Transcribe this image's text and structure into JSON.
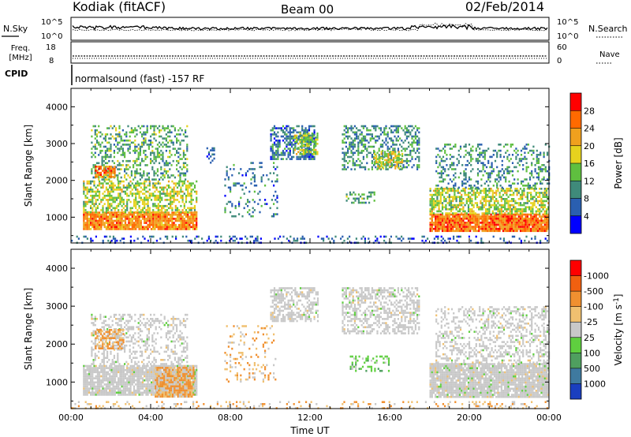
{
  "header": {
    "station": "Kodiak (fitACF)",
    "beam": "Beam 00",
    "date": "02/Feb/2014"
  },
  "summary": {
    "nsky_label": "N.Sky",
    "nsky_ticks": [
      "10^5",
      "10^0"
    ],
    "nsearch_label": "N.Search",
    "freq_label_line1": "Freq.",
    "freq_label_line2": "[MHz]",
    "freq_ticks": [
      "18",
      "8"
    ],
    "nave_label": "Nave",
    "nave_ticks": [
      "60",
      "0"
    ],
    "cpid_label": "CPID",
    "cpid_text": "normalsound (fast) -157 RF"
  },
  "chart_data": [
    {
      "type": "heatmap",
      "parameter": "Power",
      "xlabel": "",
      "ylabel": "Slant Range [km]",
      "ylim": [
        300,
        4500
      ],
      "yticks": [
        1000,
        2000,
        3000,
        4000
      ],
      "xlim": [
        0,
        24
      ],
      "colorbar": {
        "label": "Power [dB]",
        "ticks": [
          "4",
          "8",
          "12",
          "16",
          "20",
          "24",
          "28"
        ],
        "colors": [
          "#0000ff",
          "#2a5fb0",
          "#3f8a7a",
          "#5fbf3f",
          "#e6d21e",
          "#f0a01e",
          "#ff6a00",
          "#ff0000"
        ]
      },
      "scatter_regions": [
        {
          "t": [
            0.6,
            6.3
          ],
          "r": [
            700,
            1150
          ],
          "level": 26,
          "density": 0.9
        },
        {
          "t": [
            0.6,
            6.3
          ],
          "r": [
            1150,
            2000
          ],
          "level": 18,
          "density": 0.55
        },
        {
          "t": [
            1.0,
            5.8
          ],
          "r": [
            2000,
            3500
          ],
          "level": 14,
          "density": 0.35
        },
        {
          "t": [
            1.2,
            2.2
          ],
          "r": [
            2100,
            2400
          ],
          "level": 26,
          "density": 0.8
        },
        {
          "t": [
            6.8,
            7.2
          ],
          "r": [
            2500,
            2900
          ],
          "level": 8,
          "density": 0.4
        },
        {
          "t": [
            7.7,
            10.4
          ],
          "r": [
            1000,
            2500
          ],
          "level": 10,
          "density": 0.15
        },
        {
          "t": [
            10.0,
            12.2
          ],
          "r": [
            2600,
            3500
          ],
          "level": 10,
          "density": 0.55
        },
        {
          "t": [
            11.2,
            12.4
          ],
          "r": [
            2700,
            3300
          ],
          "level": 18,
          "density": 0.6
        },
        {
          "t": [
            13.6,
            17.5
          ],
          "r": [
            2300,
            3500
          ],
          "level": 12,
          "density": 0.45
        },
        {
          "t": [
            15.2,
            16.6
          ],
          "r": [
            2300,
            2800
          ],
          "level": 20,
          "density": 0.5
        },
        {
          "t": [
            13.8,
            15.2
          ],
          "r": [
            1400,
            1700
          ],
          "level": 14,
          "density": 0.35
        },
        {
          "t": [
            18.0,
            24.0
          ],
          "r": [
            650,
            1100
          ],
          "level": 27,
          "density": 0.92
        },
        {
          "t": [
            18.0,
            24.0
          ],
          "r": [
            1100,
            1800
          ],
          "level": 18,
          "density": 0.6
        },
        {
          "t": [
            18.3,
            24.0
          ],
          "r": [
            1800,
            3000
          ],
          "level": 12,
          "density": 0.3
        },
        {
          "t": [
            0.0,
            24.0
          ],
          "r": [
            300,
            500
          ],
          "level": 8,
          "density": 0.2
        }
      ]
    },
    {
      "type": "heatmap",
      "parameter": "Velocity",
      "xlabel": "Time UT",
      "ylabel": "Slant Range [km]",
      "ylim": [
        300,
        4500
      ],
      "yticks": [
        1000,
        2000,
        3000,
        4000
      ],
      "xlim": [
        0,
        24
      ],
      "xticks": [
        "00:00",
        "04:00",
        "08:00",
        "12:00",
        "16:00",
        "20:00",
        "00:00"
      ],
      "colorbar": {
        "label": "Velocity [m s^-1]",
        "ticks": [
          "1000",
          "500",
          "100",
          "25",
          "-25",
          "-100",
          "-500",
          "-1000"
        ],
        "colors": [
          "#1a3fbf",
          "#3f7a9f",
          "#4f9f5f",
          "#5fcf3f",
          "#c8c8c8",
          "#f0c070",
          "#f09030",
          "#f06010",
          "#ff0000"
        ]
      },
      "scatter_regions": [
        {
          "t": [
            0.6,
            6.3
          ],
          "r": [
            650,
            1450
          ],
          "level": 0,
          "density": 0.9
        },
        {
          "t": [
            1.0,
            5.8
          ],
          "r": [
            1450,
            2800
          ],
          "level": 0,
          "density": 0.35
        },
        {
          "t": [
            4.2,
            6.2
          ],
          "r": [
            600,
            1400
          ],
          "level": -300,
          "density": 0.85
        },
        {
          "t": [
            1.2,
            2.6
          ],
          "r": [
            1900,
            2400
          ],
          "level": -300,
          "density": 0.6
        },
        {
          "t": [
            7.7,
            10.4
          ],
          "r": [
            1000,
            2500
          ],
          "level": -100,
          "density": 0.15
        },
        {
          "t": [
            10.0,
            12.4
          ],
          "r": [
            2600,
            3500
          ],
          "level": 0,
          "density": 0.55
        },
        {
          "t": [
            13.6,
            17.5
          ],
          "r": [
            2300,
            3500
          ],
          "level": 0,
          "density": 0.5
        },
        {
          "t": [
            14.0,
            16.0
          ],
          "r": [
            1300,
            1700
          ],
          "level": 60,
          "density": 0.35
        },
        {
          "t": [
            18.0,
            24.0
          ],
          "r": [
            600,
            1500
          ],
          "level": 0,
          "density": 0.9
        },
        {
          "t": [
            18.3,
            24.0
          ],
          "r": [
            1500,
            3000
          ],
          "level": 0,
          "density": 0.35
        },
        {
          "t": [
            0.0,
            24.0
          ],
          "r": [
            300,
            500
          ],
          "level": -100,
          "density": 0.2
        }
      ]
    }
  ]
}
